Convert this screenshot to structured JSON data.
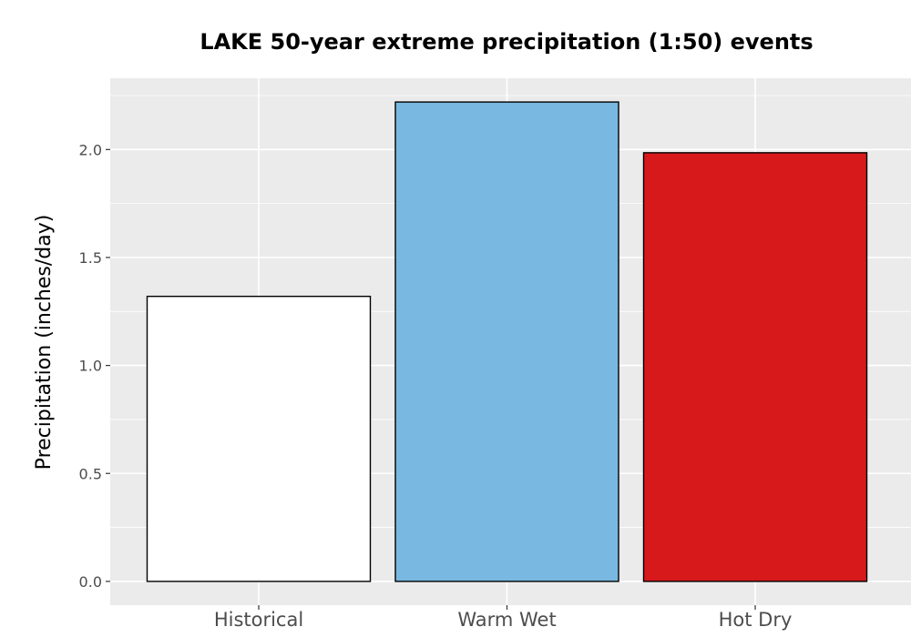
{
  "chart_data": {
    "type": "bar",
    "title": "LAKE 50-year extreme precipitation (1:50) events",
    "xlabel": "",
    "ylabel": "Precipitation (inches/day)",
    "categories": [
      "Historical",
      "Warm Wet",
      "Hot Dry"
    ],
    "values": [
      1.32,
      2.22,
      1.985
    ],
    "colors": [
      "#ffffff",
      "#79b8e1",
      "#d7191c"
    ],
    "bar_outline": "#000000",
    "panel_background": "#ebebeb",
    "grid": true,
    "grid_color": "#ffffff",
    "legend": "none",
    "ylim": [
      -0.11,
      2.33
    ],
    "yticks": [
      0.0,
      0.5,
      1.0,
      1.5,
      2.0
    ],
    "ytick_labels": [
      "0.0",
      "0.5",
      "1.0",
      "1.5",
      "2.0"
    ]
  }
}
